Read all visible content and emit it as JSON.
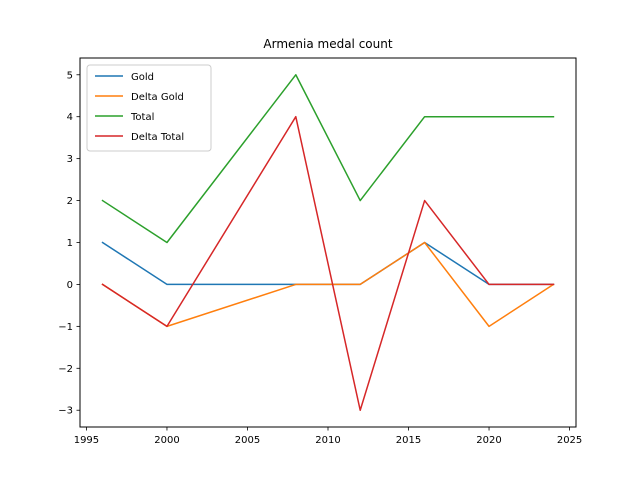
{
  "chart_data": {
    "type": "line",
    "title": "Armenia medal count",
    "xlabel": "",
    "ylabel": "",
    "x": [
      1996,
      2000,
      2008,
      2012,
      2016,
      2020,
      2024
    ],
    "series": [
      {
        "name": "Gold",
        "color": "#1f77b4",
        "values": [
          1,
          0,
          0,
          0,
          1,
          0,
          0
        ]
      },
      {
        "name": "Delta Gold",
        "color": "#ff7f0e",
        "values": [
          0,
          -1,
          0,
          0,
          1,
          -1,
          0
        ]
      },
      {
        "name": "Total",
        "color": "#2ca02c",
        "values": [
          2,
          1,
          5,
          2,
          4,
          4,
          4
        ]
      },
      {
        "name": "Delta Total",
        "color": "#d62728",
        "values": [
          0,
          -1,
          4,
          -3,
          2,
          0,
          0
        ]
      }
    ],
    "xlim": [
      1994.6,
      2025.4
    ],
    "ylim": [
      -3.4,
      5.4
    ],
    "xticks": [
      1995,
      2000,
      2005,
      2010,
      2015,
      2020,
      2025
    ],
    "yticks": [
      -3,
      -2,
      -1,
      0,
      1,
      2,
      3,
      4,
      5
    ],
    "ytick_labels": [
      "−3",
      "−2",
      "−1",
      "0",
      "1",
      "2",
      "3",
      "4",
      "5"
    ],
    "legend": "upper-left",
    "grid": false
  }
}
